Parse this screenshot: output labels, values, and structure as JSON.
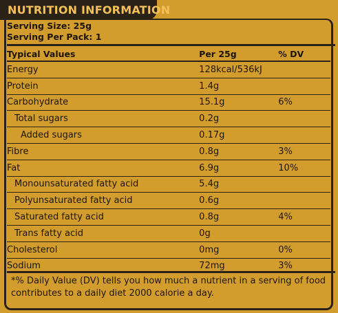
{
  "header": {
    "title": "NUTRITION INFORMATION"
  },
  "serving": {
    "size": "Serving Size: 25g",
    "per_pack": "Serving Per Pack: 1"
  },
  "table": {
    "headers": {
      "name": "Typical Values",
      "per": "Per 25g",
      "dv": "% DV"
    },
    "rows": [
      {
        "name": "Energy",
        "per": "128kcal/536kJ",
        "dv": "",
        "indent": 0
      },
      {
        "name": "Protein",
        "per": "1.4g",
        "dv": "",
        "indent": 0
      },
      {
        "name": "Carbohydrate",
        "per": "15.1g",
        "dv": "6%",
        "indent": 0
      },
      {
        "name": "Total sugars",
        "per": "0.2g",
        "dv": "",
        "indent": 1
      },
      {
        "name": "Added sugars",
        "per": "0.17g",
        "dv": "",
        "indent": 2
      },
      {
        "name": "Fibre",
        "per": "0.8g",
        "dv": "3%",
        "indent": 0
      },
      {
        "name": "Fat",
        "per": "6.9g",
        "dv": "10%",
        "indent": 0
      },
      {
        "name": "Monounsaturated fatty acid",
        "per": "5.4g",
        "dv": "",
        "indent": 1
      },
      {
        "name": "Polyunsaturated fatty acid",
        "per": "0.6g",
        "dv": "",
        "indent": 1
      },
      {
        "name": "Saturated fatty acid",
        "per": "0.8g",
        "dv": "4%",
        "indent": 1
      },
      {
        "name": "Trans fatty acid",
        "per": "0g",
        "dv": "",
        "indent": 1
      },
      {
        "name": "Cholesterol",
        "per": "0mg",
        "dv": "0%",
        "indent": 0
      },
      {
        "name": "Sodium",
        "per": "72mg",
        "dv": "3%",
        "indent": 0
      }
    ]
  },
  "footnote": "*% Daily Value (DV) tells you how much a nutrient in a serving of food contributes to a daily diet 2000 calorie a day.",
  "colors": {
    "background": "#d39d2e",
    "dark": "#2b2217",
    "title_text": "#f3c05a"
  }
}
